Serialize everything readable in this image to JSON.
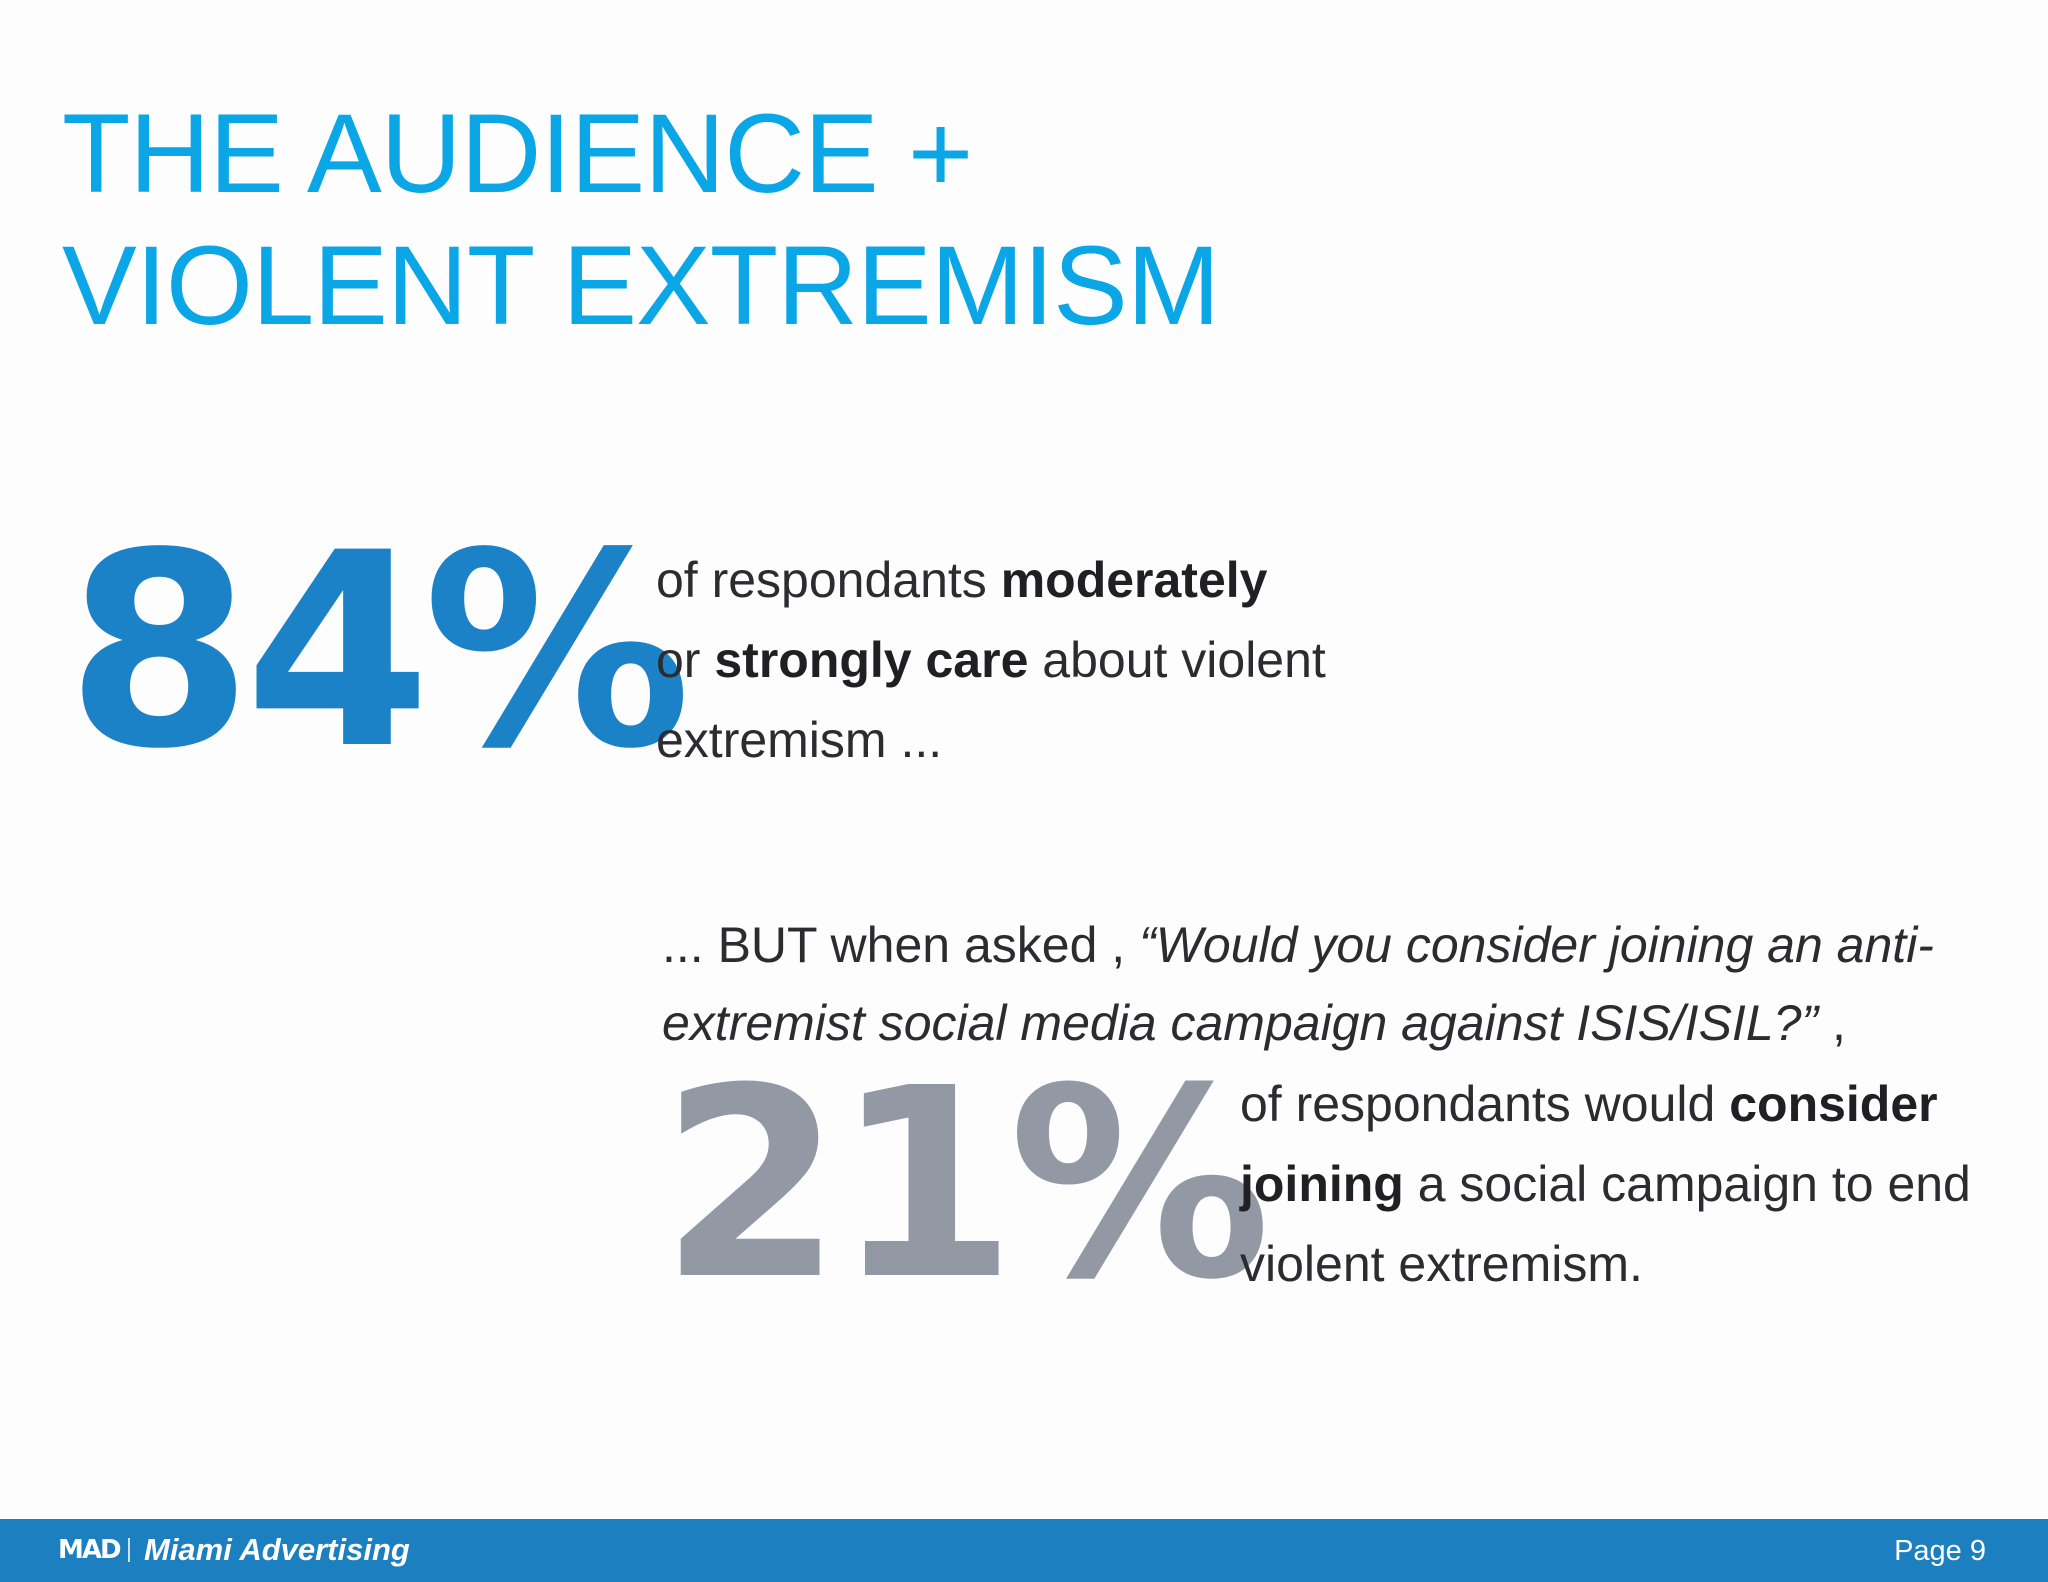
{
  "title": {
    "line1": "THE AUDIENCE +",
    "line2": "VIOLENT EXTREMISM"
  },
  "stat1": {
    "value": "84%",
    "text_1": "of respondants ",
    "bold_1": "moderately",
    "text_2": "or ",
    "bold_2": "strongly care",
    "text_3": " about violent extremism ..."
  },
  "question": {
    "lead": "... BUT when asked , ",
    "quote": "“Would you consider joining an anti-extremist social media campaign against ISIS/ISIL?”",
    "tail": " ,"
  },
  "stat2": {
    "value": "21%",
    "text_1": "of respondants would ",
    "bold_1": "consider joining",
    "text_2": " a social campaign to end violent extremism."
  },
  "footer": {
    "logo": "MAD",
    "company": "Miami Advertising",
    "page": "Page 9"
  },
  "colors": {
    "title": "#0aa6e6",
    "stat1": "#1b82c7",
    "stat2": "#9399a4",
    "footer_bg": "#1b7fc0"
  }
}
